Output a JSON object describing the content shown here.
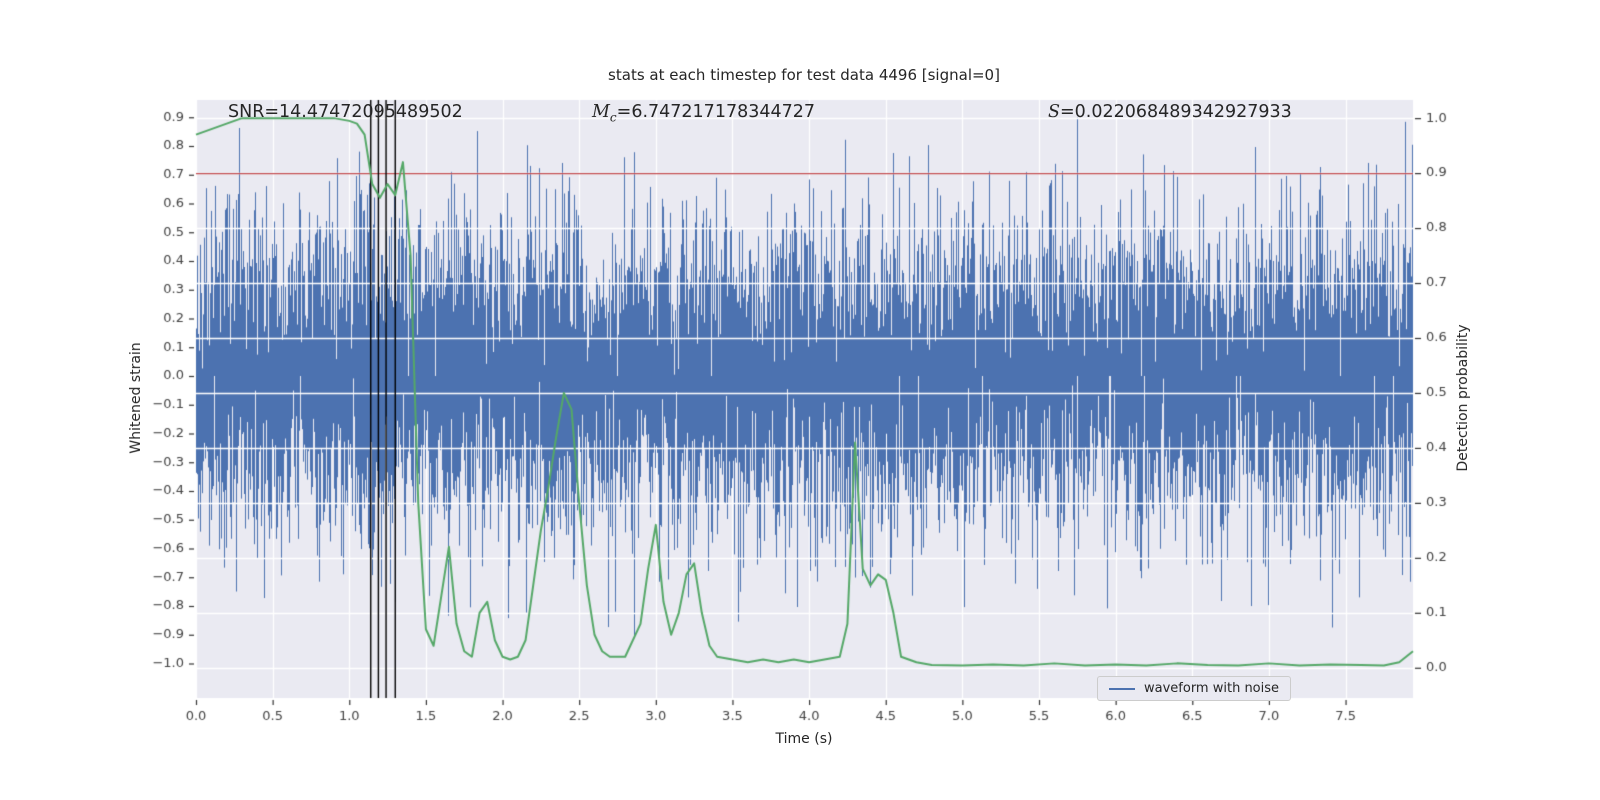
{
  "title": "stats at each timestep for test data 4496 [signal=0]",
  "annotations": {
    "snr": "SNR=14.47472095489502",
    "mc_symbol": "M",
    "mc_sub": "c",
    "mc_value": "=6.747217178344727",
    "s_symbol": "S",
    "s_value": "=0.022068489342927933"
  },
  "axes": {
    "xlabel": "Time (s)",
    "ylabel_left": "Whitened strain",
    "ylabel_right": "Detection probability",
    "xlim": [
      0,
      7.94
    ],
    "ylim_left": [
      -1.12,
      0.96
    ],
    "ylim_right": [
      -0.055,
      1.033
    ],
    "x_ticks": [
      0.0,
      0.5,
      1.0,
      1.5,
      2.0,
      2.5,
      3.0,
      3.5,
      4.0,
      4.5,
      5.0,
      5.5,
      6.0,
      6.5,
      7.0,
      7.5
    ],
    "y_ticks_left": [
      0.9,
      0.8,
      0.7,
      0.6,
      0.5,
      0.4,
      0.3,
      0.2,
      0.1,
      0.0,
      -0.1,
      -0.2,
      -0.3,
      -0.4,
      -0.5,
      -0.6,
      -0.7,
      -0.8,
      -0.9,
      -1.0
    ],
    "y_ticks_right": [
      1.0,
      0.9,
      0.8,
      0.7,
      0.6,
      0.5,
      0.4,
      0.3,
      0.2,
      0.1,
      0.0
    ],
    "grid": true
  },
  "chart_data": {
    "type": "line",
    "title": "stats at each timestep for test data 4496 [signal=0]",
    "xlabel": "Time (s)",
    "ylabel_left": "Whitened strain",
    "ylabel_right": "Detection probability",
    "series": [
      {
        "name": "waveform with noise",
        "axis": "left",
        "kind": "gaussian-noise",
        "color": "#4c72b0",
        "noise_std": 0.26,
        "noise_n": 9000,
        "noise_seed": 4496,
        "x_range": [
          0,
          7.94
        ]
      },
      {
        "name": "detection probability",
        "axis": "right",
        "kind": "line",
        "color": "#55a868",
        "x": [
          0.0,
          0.3,
          0.6,
          0.9,
          1.0,
          1.05,
          1.1,
          1.15,
          1.2,
          1.25,
          1.3,
          1.35,
          1.4,
          1.45,
          1.5,
          1.55,
          1.6,
          1.65,
          1.7,
          1.75,
          1.8,
          1.85,
          1.9,
          1.95,
          2.0,
          2.05,
          2.1,
          2.15,
          2.2,
          2.25,
          2.3,
          2.35,
          2.4,
          2.45,
          2.5,
          2.55,
          2.6,
          2.65,
          2.7,
          2.8,
          2.9,
          2.95,
          3.0,
          3.05,
          3.1,
          3.15,
          3.2,
          3.25,
          3.3,
          3.35,
          3.4,
          3.5,
          3.6,
          3.7,
          3.8,
          3.9,
          4.0,
          4.1,
          4.2,
          4.25,
          4.3,
          4.35,
          4.4,
          4.45,
          4.5,
          4.55,
          4.6,
          4.7,
          4.8,
          5.0,
          5.2,
          5.4,
          5.6,
          5.8,
          6.0,
          6.2,
          6.4,
          6.6,
          6.8,
          7.0,
          7.2,
          7.4,
          7.6,
          7.75,
          7.85,
          7.94
        ],
        "y": [
          0.97,
          1.0,
          1.0,
          1.0,
          0.995,
          0.99,
          0.97,
          0.88,
          0.855,
          0.88,
          0.86,
          0.92,
          0.75,
          0.3,
          0.07,
          0.04,
          0.13,
          0.22,
          0.08,
          0.03,
          0.02,
          0.1,
          0.12,
          0.05,
          0.02,
          0.015,
          0.02,
          0.05,
          0.15,
          0.25,
          0.33,
          0.42,
          0.5,
          0.47,
          0.3,
          0.15,
          0.06,
          0.03,
          0.02,
          0.02,
          0.08,
          0.18,
          0.26,
          0.12,
          0.06,
          0.1,
          0.17,
          0.19,
          0.1,
          0.04,
          0.02,
          0.015,
          0.01,
          0.015,
          0.01,
          0.015,
          0.01,
          0.015,
          0.02,
          0.08,
          0.41,
          0.18,
          0.15,
          0.17,
          0.16,
          0.1,
          0.02,
          0.01,
          0.005,
          0.004,
          0.006,
          0.004,
          0.008,
          0.004,
          0.006,
          0.004,
          0.008,
          0.005,
          0.004,
          0.008,
          0.004,
          0.006,
          0.005,
          0.004,
          0.01,
          0.03
        ]
      }
    ],
    "threshold_line": {
      "axis": "right",
      "value": 0.9,
      "color": "#c44e52"
    },
    "event_marker_lines": {
      "x": [
        1.14,
        1.19,
        1.24,
        1.3
      ],
      "color": "#000000"
    },
    "legend": {
      "label": "waveform with noise",
      "position": "lower right"
    }
  },
  "colors": {
    "background": "#ffffff",
    "axes_bg": "#eaeaf2",
    "grid": "#ffffff",
    "waveform": "#4c72b0",
    "prob_line": "#55a868",
    "threshold": "#c44e52",
    "event_line": "#000000",
    "text": "#262626",
    "tick_text": "#444444"
  }
}
